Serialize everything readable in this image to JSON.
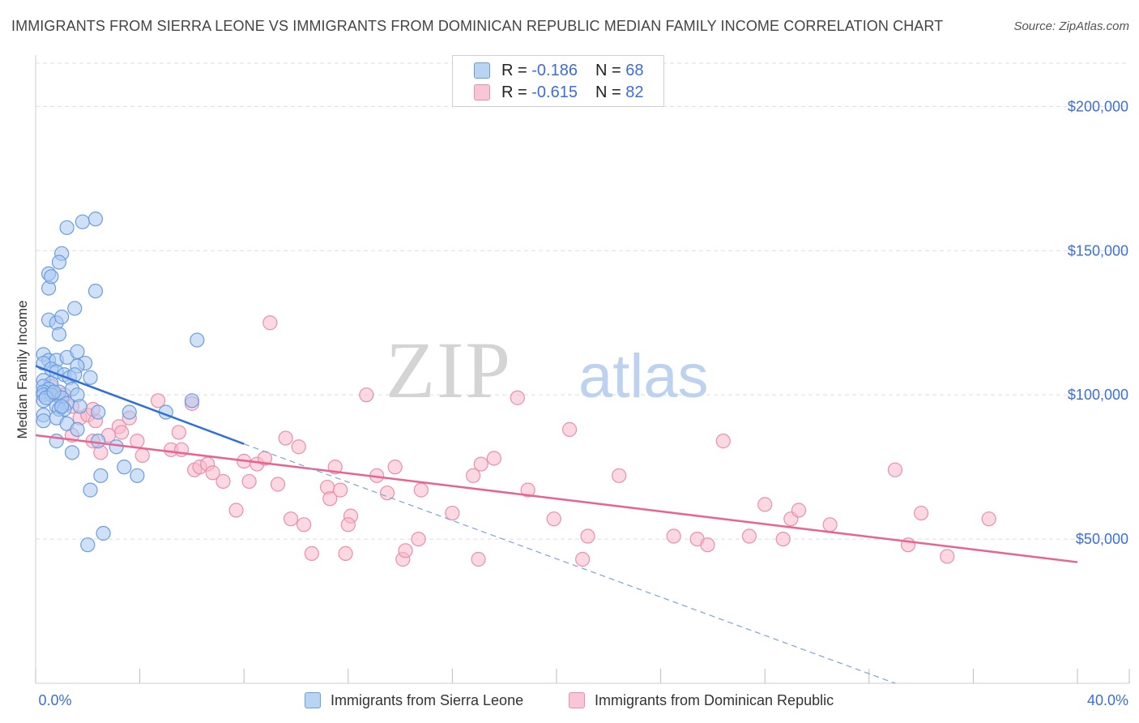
{
  "title": "IMMIGRANTS FROM SIERRA LEONE VS IMMIGRANTS FROM DOMINICAN REPUBLIC MEDIAN FAMILY INCOME CORRELATION CHART",
  "source": "Source: ZipAtlas.com",
  "watermark": {
    "zip": "ZIP",
    "atlas": "atlas"
  },
  "legend": {
    "rows": [
      {
        "r_label": "R =",
        "r_value": "-0.186",
        "n_label": "N =",
        "n_value": "68"
      },
      {
        "r_label": "R =",
        "r_value": "-0.615",
        "n_label": "N =",
        "n_value": "82"
      }
    ]
  },
  "colors": {
    "series1_fill": "#aac8f0",
    "series1_stroke": "#6a9de0",
    "series1_line": "#2f6fd6",
    "series2_fill": "#f7b8cb",
    "series2_stroke": "#ea8fab",
    "series2_line": "#e8648f",
    "tick_label": "#3a6fd8",
    "grid": "#dddddd"
  },
  "chart_data": {
    "type": "scatter",
    "title": "IMMIGRANTS FROM SIERRA LEONE VS IMMIGRANTS FROM DOMINICAN REPUBLIC MEDIAN FAMILY INCOME CORRELATION CHART",
    "xlabel": "",
    "ylabel": "Median Family Income",
    "xlim": [
      0,
      40
    ],
    "ylim": [
      0,
      215000
    ],
    "x_tick_labels": [
      "0.0%",
      "40.0%"
    ],
    "y_ticks": [
      {
        "value": 50000,
        "label": "$50,000"
      },
      {
        "value": 100000,
        "label": "$100,000"
      },
      {
        "value": 150000,
        "label": "$150,000"
      },
      {
        "value": 200000,
        "label": "$200,000"
      }
    ],
    "grid": true,
    "series": [
      {
        "name": "Immigrants from Sierra Leone",
        "r": -0.186,
        "n": 68,
        "trend": {
          "x": [
            0.0,
            8.0
          ],
          "y": [
            110000,
            83000
          ]
        },
        "trend_extension": {
          "x": [
            8.0,
            33.0
          ],
          "y": [
            83000,
            0
          ]
        },
        "points": [
          [
            0.5,
            142000
          ],
          [
            0.5,
            137000
          ],
          [
            0.6,
            141000
          ],
          [
            0.5,
            126000
          ],
          [
            0.8,
            125000
          ],
          [
            0.9,
            121000
          ],
          [
            1.0,
            149000
          ],
          [
            0.9,
            146000
          ],
          [
            1.2,
            158000
          ],
          [
            1.8,
            160000
          ],
          [
            2.3,
            161000
          ],
          [
            2.3,
            136000
          ],
          [
            1.5,
            130000
          ],
          [
            1.0,
            127000
          ],
          [
            0.3,
            114000
          ],
          [
            0.5,
            112000
          ],
          [
            0.3,
            111000
          ],
          [
            0.8,
            112000
          ],
          [
            1.2,
            113000
          ],
          [
            1.6,
            115000
          ],
          [
            1.9,
            111000
          ],
          [
            1.6,
            110000
          ],
          [
            0.6,
            109000
          ],
          [
            0.8,
            108000
          ],
          [
            1.1,
            107000
          ],
          [
            1.3,
            106000
          ],
          [
            1.5,
            107000
          ],
          [
            2.1,
            106000
          ],
          [
            0.3,
            105000
          ],
          [
            0.6,
            104000
          ],
          [
            0.3,
            103000
          ],
          [
            0.5,
            102000
          ],
          [
            0.3,
            101000
          ],
          [
            0.9,
            101000
          ],
          [
            1.4,
            102000
          ],
          [
            0.3,
            100000
          ],
          [
            0.6,
            100000
          ],
          [
            1.0,
            99000
          ],
          [
            1.6,
            100000
          ],
          [
            1.2,
            97000
          ],
          [
            0.8,
            96000
          ],
          [
            0.9,
            95000
          ],
          [
            1.1,
            95000
          ],
          [
            1.7,
            96000
          ],
          [
            0.3,
            93000
          ],
          [
            0.8,
            92000
          ],
          [
            0.3,
            91000
          ],
          [
            1.2,
            90000
          ],
          [
            1.6,
            88000
          ],
          [
            2.4,
            94000
          ],
          [
            3.6,
            94000
          ],
          [
            5.0,
            94000
          ],
          [
            6.0,
            98000
          ],
          [
            0.8,
            84000
          ],
          [
            2.4,
            84000
          ],
          [
            1.4,
            80000
          ],
          [
            3.1,
            82000
          ],
          [
            3.4,
            75000
          ],
          [
            3.9,
            72000
          ],
          [
            2.5,
            72000
          ],
          [
            2.1,
            67000
          ],
          [
            2.6,
            52000
          ],
          [
            2.0,
            48000
          ],
          [
            6.2,
            119000
          ],
          [
            0.3,
            98000
          ],
          [
            1.0,
            96000
          ],
          [
            0.4,
            99000
          ],
          [
            0.7,
            101000
          ]
        ]
      },
      {
        "name": "Immigrants from Dominican Republic",
        "r": -0.615,
        "n": 82,
        "trend": {
          "x": [
            0.0,
            40.0
          ],
          "y": [
            86000,
            42000
          ]
        },
        "points": [
          [
            9.0,
            125000
          ],
          [
            12.7,
            100000
          ],
          [
            18.5,
            99000
          ],
          [
            20.5,
            88000
          ],
          [
            26.4,
            84000
          ],
          [
            0.6,
            103000
          ],
          [
            0.8,
            100000
          ],
          [
            1.0,
            98000
          ],
          [
            1.4,
            96000
          ],
          [
            1.7,
            92000
          ],
          [
            2.0,
            93000
          ],
          [
            2.3,
            91000
          ],
          [
            1.4,
            86000
          ],
          [
            2.2,
            84000
          ],
          [
            2.5,
            80000
          ],
          [
            3.2,
            89000
          ],
          [
            3.3,
            87000
          ],
          [
            3.6,
            92000
          ],
          [
            2.8,
            86000
          ],
          [
            3.9,
            84000
          ],
          [
            4.1,
            79000
          ],
          [
            4.7,
            98000
          ],
          [
            5.2,
            81000
          ],
          [
            5.5,
            87000
          ],
          [
            6.0,
            97000
          ],
          [
            6.1,
            74000
          ],
          [
            6.3,
            75000
          ],
          [
            6.6,
            76000
          ],
          [
            6.8,
            73000
          ],
          [
            7.2,
            70000
          ],
          [
            7.7,
            60000
          ],
          [
            8.0,
            77000
          ],
          [
            8.2,
            70000
          ],
          [
            8.5,
            76000
          ],
          [
            8.8,
            78000
          ],
          [
            9.6,
            85000
          ],
          [
            10.1,
            82000
          ],
          [
            9.3,
            69000
          ],
          [
            9.8,
            57000
          ],
          [
            10.3,
            55000
          ],
          [
            10.6,
            45000
          ],
          [
            11.2,
            68000
          ],
          [
            11.3,
            64000
          ],
          [
            11.5,
            75000
          ],
          [
            11.7,
            67000
          ],
          [
            12.1,
            58000
          ],
          [
            12.0,
            55000
          ],
          [
            11.9,
            45000
          ],
          [
            13.1,
            72000
          ],
          [
            13.5,
            66000
          ],
          [
            13.8,
            75000
          ],
          [
            14.1,
            43000
          ],
          [
            14.2,
            46000
          ],
          [
            14.7,
            50000
          ],
          [
            14.8,
            67000
          ],
          [
            16.0,
            59000
          ],
          [
            16.8,
            72000
          ],
          [
            17.1,
            76000
          ],
          [
            17.6,
            78000
          ],
          [
            17.0,
            43000
          ],
          [
            18.9,
            67000
          ],
          [
            19.9,
            57000
          ],
          [
            21.2,
            51000
          ],
          [
            21.0,
            43000
          ],
          [
            22.4,
            72000
          ],
          [
            24.5,
            51000
          ],
          [
            25.4,
            50000
          ],
          [
            25.8,
            48000
          ],
          [
            27.4,
            51000
          ],
          [
            28.0,
            62000
          ],
          [
            28.7,
            50000
          ],
          [
            29.0,
            57000
          ],
          [
            29.3,
            60000
          ],
          [
            30.5,
            55000
          ],
          [
            33.0,
            74000
          ],
          [
            33.5,
            48000
          ],
          [
            34.0,
            59000
          ],
          [
            35.0,
            44000
          ],
          [
            36.6,
            57000
          ],
          [
            1.1,
            100000
          ],
          [
            2.2,
            95000
          ],
          [
            5.6,
            81000
          ]
        ]
      }
    ]
  },
  "bottom_legend": {
    "items": [
      "Immigrants from Sierra Leone",
      "Immigrants from Dominican Republic"
    ]
  }
}
